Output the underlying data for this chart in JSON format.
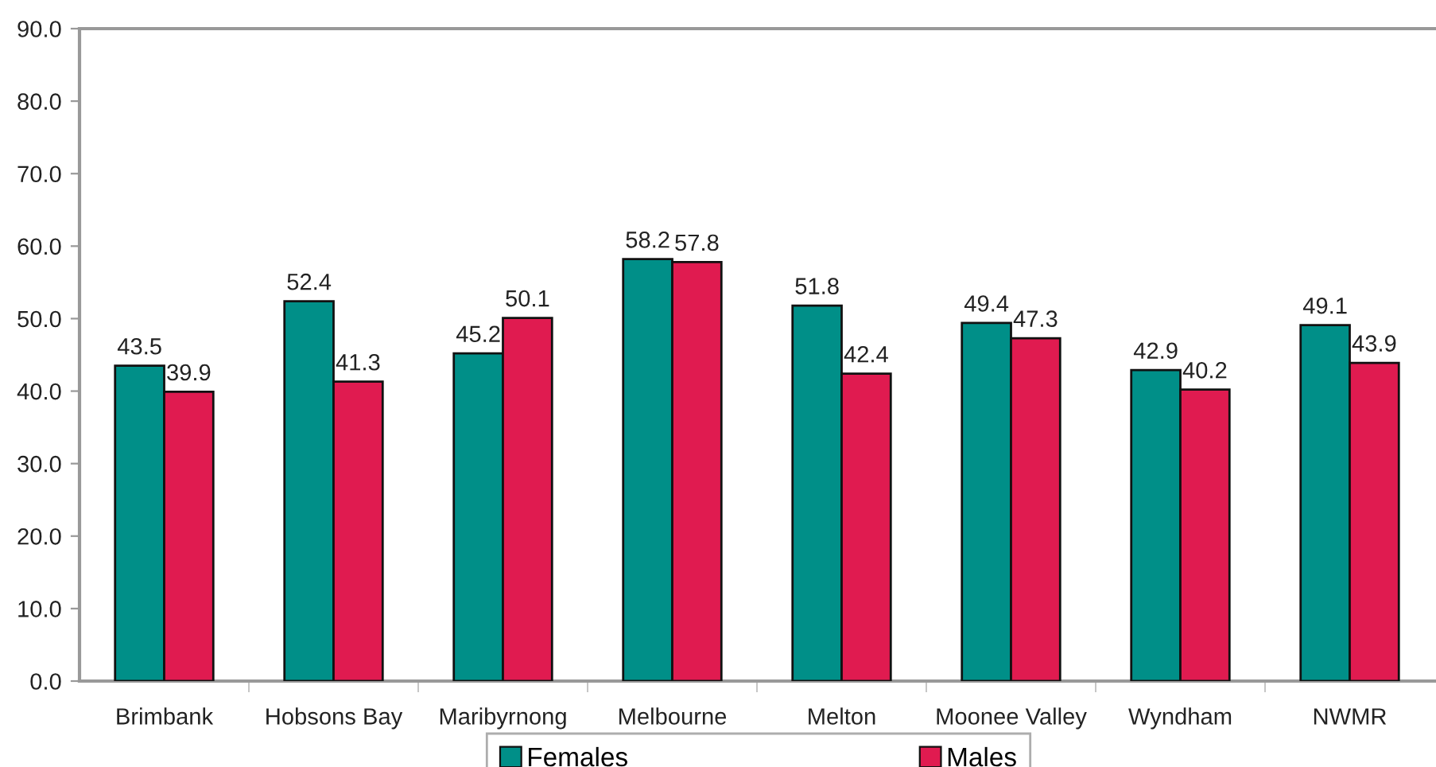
{
  "chart_data": {
    "type": "bar",
    "categories": [
      "Brimbank",
      "Hobsons Bay",
      "Maribyrnong",
      "Melbourne",
      "Melton",
      "Moonee Valley",
      "Wyndham",
      "NWMR"
    ],
    "series": [
      {
        "name": "Females",
        "color": "#008f88",
        "values": [
          43.5,
          52.4,
          45.2,
          58.2,
          51.8,
          49.4,
          42.9,
          49.1
        ]
      },
      {
        "name": "Males",
        "color": "#e01b50",
        "values": [
          39.9,
          41.3,
          50.1,
          57.8,
          42.4,
          47.3,
          40.2,
          43.9
        ]
      }
    ],
    "ylim": [
      0,
      90
    ],
    "yticks": [
      {
        "value": 0,
        "label": "0.0"
      },
      {
        "value": 10,
        "label": "10.0"
      },
      {
        "value": 20,
        "label": "20.0"
      },
      {
        "value": 30,
        "label": "30.0"
      },
      {
        "value": 40,
        "label": "40.0"
      },
      {
        "value": 50,
        "label": "50.0"
      },
      {
        "value": 60,
        "label": "60.0"
      },
      {
        "value": 70,
        "label": "70.0"
      },
      {
        "value": 80,
        "label": "80.0"
      },
      {
        "value": 90,
        "label": "90.0"
      }
    ],
    "data_labels": true,
    "grid": false,
    "legend": "bottom"
  }
}
